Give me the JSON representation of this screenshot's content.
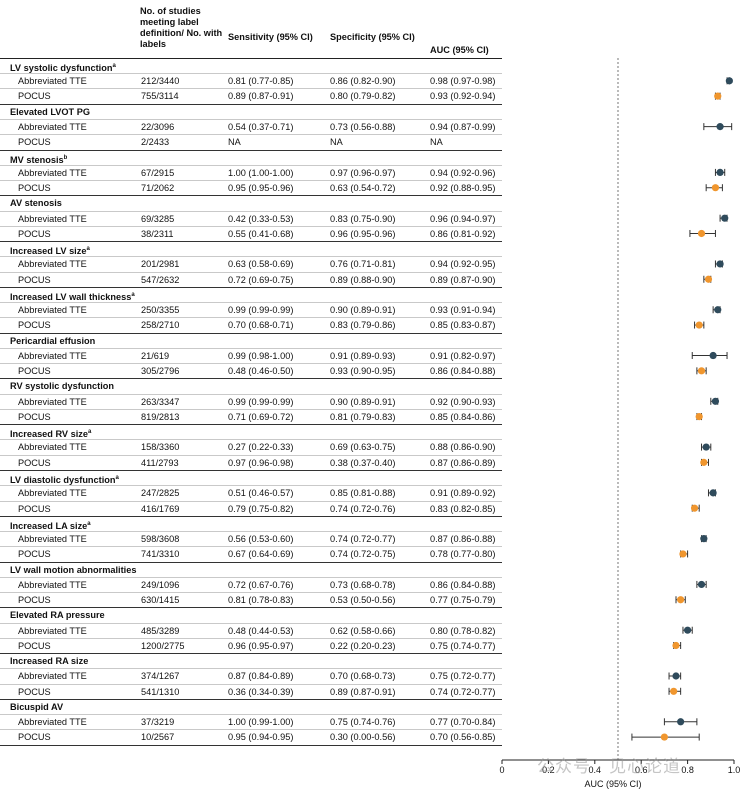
{
  "header": {
    "studies_label": "No. of studies meeting label definition/ No. with labels",
    "sensitivity_label": "Sensitivity (95% CI)",
    "specificity_label": "Specificity (95% CI)",
    "auc_label": "AUC (95% CI)"
  },
  "colors": {
    "tte": "#2f4b5c",
    "pocus": "#f0962e",
    "ref_line": "#555555"
  },
  "chart_data": {
    "type": "forest",
    "xlabel": "AUC (95% CI)",
    "xlim": [
      0,
      1.0
    ],
    "xticks": [
      "0",
      "0.2",
      "0.4",
      "0.6",
      "0.8",
      "1.0"
    ],
    "reference_line": 0.5,
    "legend": [
      {
        "name": "Abbreviated TTE",
        "color": "#2f4b5c"
      },
      {
        "name": "POCUS",
        "color": "#f0962e"
      }
    ],
    "groups": [
      {
        "label": "LV systolic dysfunction",
        "sup": "a",
        "rows": [
          {
            "modality": "Abbreviated TTE",
            "studies": "212/3440",
            "sensitivity": "0.81 (0.77-0.85)",
            "specificity": "0.86 (0.82-0.90)",
            "auc_text": "0.98 (0.97-0.98)",
            "auc": 0.98,
            "lo": 0.97,
            "hi": 0.98
          },
          {
            "modality": "POCUS",
            "studies": "755/3114",
            "sensitivity": "0.89 (0.87-0.91)",
            "specificity": "0.80 (0.79-0.82)",
            "auc_text": "0.93 (0.92-0.94)",
            "auc": 0.93,
            "lo": 0.92,
            "hi": 0.94
          }
        ]
      },
      {
        "label": "Elevated LVOT PG",
        "sup": "",
        "rows": [
          {
            "modality": "Abbreviated TTE",
            "studies": "22/3096",
            "sensitivity": "0.54 (0.37-0.71)",
            "specificity": "0.73 (0.56-0.88)",
            "auc_text": "0.94 (0.87-0.99)",
            "auc": 0.94,
            "lo": 0.87,
            "hi": 0.99
          },
          {
            "modality": "POCUS",
            "studies": "2/2433",
            "sensitivity": "NA",
            "specificity": "NA",
            "auc_text": "NA",
            "auc": null,
            "lo": null,
            "hi": null
          }
        ]
      },
      {
        "label": "MV stenosis",
        "sup": "b",
        "rows": [
          {
            "modality": "Abbreviated TTE",
            "studies": "67/2915",
            "sensitivity": "1.00 (1.00-1.00)",
            "specificity": "0.97 (0.96-0.97)",
            "auc_text": "0.94 (0.92-0.96)",
            "auc": 0.94,
            "lo": 0.92,
            "hi": 0.96
          },
          {
            "modality": "POCUS",
            "studies": "71/2062",
            "sensitivity": "0.95 (0.95-0.96)",
            "specificity": "0.63 (0.54-0.72)",
            "auc_text": "0.92 (0.88-0.95)",
            "auc": 0.92,
            "lo": 0.88,
            "hi": 0.95
          }
        ]
      },
      {
        "label": "AV stenosis",
        "sup": "",
        "rows": [
          {
            "modality": "Abbreviated TTE",
            "studies": "69/3285",
            "sensitivity": "0.42 (0.33-0.53)",
            "specificity": "0.83 (0.75-0.90)",
            "auc_text": "0.96 (0.94-0.97)",
            "auc": 0.96,
            "lo": 0.94,
            "hi": 0.97
          },
          {
            "modality": "POCUS",
            "studies": "38/2311",
            "sensitivity": "0.55 (0.41-0.68)",
            "specificity": "0.96 (0.95-0.96)",
            "auc_text": "0.86 (0.81-0.92)",
            "auc": 0.86,
            "lo": 0.81,
            "hi": 0.92
          }
        ]
      },
      {
        "label": "Increased LV size",
        "sup": "a",
        "rows": [
          {
            "modality": "Abbreviated TTE",
            "studies": "201/2981",
            "sensitivity": "0.63 (0.58-0.69)",
            "specificity": "0.76 (0.71-0.81)",
            "auc_text": "0.94 (0.92-0.95)",
            "auc": 0.94,
            "lo": 0.92,
            "hi": 0.95
          },
          {
            "modality": "POCUS",
            "studies": "547/2632",
            "sensitivity": "0.72 (0.69-0.75)",
            "specificity": "0.89 (0.88-0.90)",
            "auc_text": "0.89 (0.87-0.90)",
            "auc": 0.89,
            "lo": 0.87,
            "hi": 0.9
          }
        ]
      },
      {
        "label": "Increased LV wall thickness",
        "sup": "a",
        "rows": [
          {
            "modality": "Abbreviated TTE",
            "studies": "250/3355",
            "sensitivity": "0.99 (0.99-0.99)",
            "specificity": "0.90 (0.89-0.91)",
            "auc_text": "0.93 (0.91-0.94)",
            "auc": 0.93,
            "lo": 0.91,
            "hi": 0.94
          },
          {
            "modality": "POCUS",
            "studies": "258/2710",
            "sensitivity": "0.70 (0.68-0.71)",
            "specificity": "0.83 (0.79-0.86)",
            "auc_text": "0.85 (0.83-0.87)",
            "auc": 0.85,
            "lo": 0.83,
            "hi": 0.87
          }
        ]
      },
      {
        "label": "Pericardial effusion",
        "sup": "",
        "rows": [
          {
            "modality": "Abbreviated TTE",
            "studies": "21/619",
            "sensitivity": "0.99 (0.98-1.00)",
            "specificity": "0.91 (0.89-0.93)",
            "auc_text": "0.91 (0.82-0.97)",
            "auc": 0.91,
            "lo": 0.82,
            "hi": 0.97
          },
          {
            "modality": "POCUS",
            "studies": "305/2796",
            "sensitivity": "0.48 (0.46-0.50)",
            "specificity": "0.93 (0.90-0.95)",
            "auc_text": "0.86 (0.84-0.88)",
            "auc": 0.86,
            "lo": 0.84,
            "hi": 0.88
          }
        ]
      },
      {
        "label": "RV systolic dysfunction",
        "sup": "",
        "rows": [
          {
            "modality": "Abbreviated TTE",
            "studies": "263/3347",
            "sensitivity": "0.99 (0.99-0.99)",
            "specificity": "0.90 (0.89-0.91)",
            "auc_text": "0.92 (0.90-0.93)",
            "auc": 0.92,
            "lo": 0.9,
            "hi": 0.93
          },
          {
            "modality": "POCUS",
            "studies": "819/2813",
            "sensitivity": "0.71 (0.69-0.72)",
            "specificity": "0.81 (0.79-0.83)",
            "auc_text": "0.85 (0.84-0.86)",
            "auc": 0.85,
            "lo": 0.84,
            "hi": 0.86
          }
        ]
      },
      {
        "label": "Increased RV size",
        "sup": "a",
        "rows": [
          {
            "modality": "Abbreviated TTE",
            "studies": "158/3360",
            "sensitivity": "0.27 (0.22-0.33)",
            "specificity": "0.69 (0.63-0.75)",
            "auc_text": "0.88 (0.86-0.90)",
            "auc": 0.88,
            "lo": 0.86,
            "hi": 0.9
          },
          {
            "modality": "POCUS",
            "studies": "411/2793",
            "sensitivity": "0.97 (0.96-0.98)",
            "specificity": "0.38 (0.37-0.40)",
            "auc_text": "0.87 (0.86-0.89)",
            "auc": 0.87,
            "lo": 0.86,
            "hi": 0.89
          }
        ]
      },
      {
        "label": "LV diastolic dysfunction",
        "sup": "a",
        "rows": [
          {
            "modality": "Abbreviated TTE",
            "studies": "247/2825",
            "sensitivity": "0.51 (0.46-0.57)",
            "specificity": "0.85 (0.81-0.88)",
            "auc_text": "0.91 (0.89-0.92)",
            "auc": 0.91,
            "lo": 0.89,
            "hi": 0.92
          },
          {
            "modality": "POCUS",
            "studies": "416/1769",
            "sensitivity": "0.79 (0.75-0.82)",
            "specificity": "0.74 (0.72-0.76)",
            "auc_text": "0.83 (0.82-0.85)",
            "auc": 0.83,
            "lo": 0.82,
            "hi": 0.85
          }
        ]
      },
      {
        "label": "Increased LA size",
        "sup": "a",
        "rows": [
          {
            "modality": "Abbreviated TTE",
            "studies": "598/3608",
            "sensitivity": "0.56 (0.53-0.60)",
            "specificity": "0.74 (0.72-0.77)",
            "auc_text": "0.87 (0.86-0.88)",
            "auc": 0.87,
            "lo": 0.86,
            "hi": 0.88
          },
          {
            "modality": "POCUS",
            "studies": "741/3310",
            "sensitivity": "0.67 (0.64-0.69)",
            "specificity": "0.74 (0.72-0.75)",
            "auc_text": "0.78 (0.77-0.80)",
            "auc": 0.78,
            "lo": 0.77,
            "hi": 0.8
          }
        ]
      },
      {
        "label": "LV wall motion abnormalities",
        "sup": "",
        "rows": [
          {
            "modality": "Abbreviated TTE",
            "studies": "249/1096",
            "sensitivity": "0.72 (0.67-0.76)",
            "specificity": "0.73 (0.68-0.78)",
            "auc_text": "0.86 (0.84-0.88)",
            "auc": 0.86,
            "lo": 0.84,
            "hi": 0.88
          },
          {
            "modality": "POCUS",
            "studies": "630/1415",
            "sensitivity": "0.81 (0.78-0.83)",
            "specificity": "0.53 (0.50-0.56)",
            "auc_text": "0.77 (0.75-0.79)",
            "auc": 0.77,
            "lo": 0.75,
            "hi": 0.79
          }
        ]
      },
      {
        "label": "Elevated RA pressure",
        "sup": "",
        "rows": [
          {
            "modality": "Abbreviated TTE",
            "studies": "485/3289",
            "sensitivity": "0.48 (0.44-0.53)",
            "specificity": "0.62 (0.58-0.66)",
            "auc_text": "0.80 (0.78-0.82)",
            "auc": 0.8,
            "lo": 0.78,
            "hi": 0.82
          },
          {
            "modality": "POCUS",
            "studies": "1200/2775",
            "sensitivity": "0.96 (0.95-0.97)",
            "specificity": "0.22 (0.20-0.23)",
            "auc_text": "0.75 (0.74-0.77)",
            "auc": 0.75,
            "lo": 0.74,
            "hi": 0.77
          }
        ]
      },
      {
        "label": "Increased RA size",
        "sup": "",
        "rows": [
          {
            "modality": "Abbreviated TTE",
            "studies": "374/1267",
            "sensitivity": "0.87 (0.84-0.89)",
            "specificity": "0.70 (0.68-0.73)",
            "auc_text": "0.75 (0.72-0.77)",
            "auc": 0.75,
            "lo": 0.72,
            "hi": 0.77
          },
          {
            "modality": "POCUS",
            "studies": "541/1310",
            "sensitivity": "0.36 (0.34-0.39)",
            "specificity": "0.89 (0.87-0.91)",
            "auc_text": "0.74 (0.72-0.77)",
            "auc": 0.74,
            "lo": 0.72,
            "hi": 0.77
          }
        ]
      },
      {
        "label": "Bicuspid AV",
        "sup": "",
        "rows": [
          {
            "modality": "Abbreviated TTE",
            "studies": "37/3219",
            "sensitivity": "1.00 (0.99-1.00)",
            "specificity": "0.75 (0.74-0.76)",
            "auc_text": "0.77 (0.70-0.84)",
            "auc": 0.77,
            "lo": 0.7,
            "hi": 0.84
          },
          {
            "modality": "POCUS",
            "studies": "10/2567",
            "sensitivity": "0.95 (0.94-0.95)",
            "specificity": "0.30 (0.00-0.56)",
            "auc_text": "0.70 (0.56-0.85)",
            "auc": 0.7,
            "lo": 0.56,
            "hi": 0.85
          }
        ]
      }
    ]
  },
  "watermark": "公众号 · 见心论道"
}
